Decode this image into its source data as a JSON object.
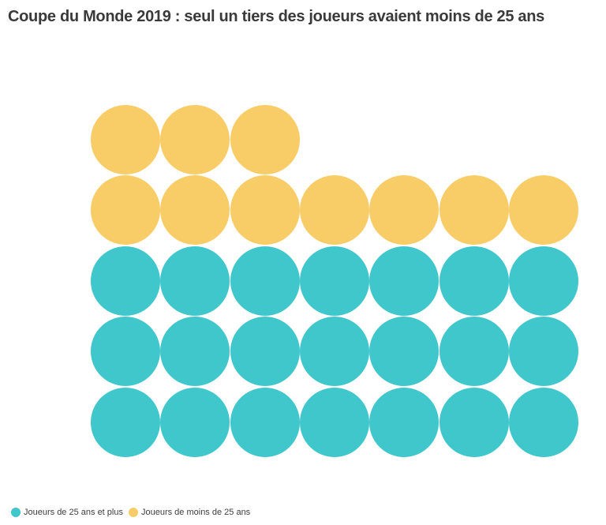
{
  "chart": {
    "title": "Coupe du Monde 2019 : seul un tiers des joueurs avaient moins de 25 ans",
    "legend": [
      {
        "key": "over25",
        "label": "Joueurs de 25 ans et plus",
        "color": "#3FC7CB"
      },
      {
        "key": "under25",
        "label": "Joueurs de moins de 25 ans",
        "color": "#F8CD67"
      }
    ]
  },
  "chart_data": {
    "type": "waffle",
    "title": "Coupe du Monde 2019 : seul un tiers des joueurs avaient moins de 25 ans",
    "unit": "joueurs",
    "total": 31,
    "series": [
      {
        "key": "under25",
        "name": "Joueurs de moins de 25 ans",
        "value": 10,
        "color": "#F8CD67"
      },
      {
        "key": "over25",
        "name": "Joueurs de 25 ans et plus",
        "value": 21,
        "color": "#3FC7CB"
      }
    ],
    "grid": {
      "columns": 7,
      "rows": [
        [
          "under25",
          "under25",
          "under25",
          null,
          null,
          null,
          null
        ],
        [
          "under25",
          "under25",
          "under25",
          "under25",
          "under25",
          "under25",
          "under25"
        ],
        [
          "over25",
          "over25",
          "over25",
          "over25",
          "over25",
          "over25",
          "over25"
        ],
        [
          "over25",
          "over25",
          "over25",
          "over25",
          "over25",
          "over25",
          "over25"
        ],
        [
          "over25",
          "over25",
          "over25",
          "over25",
          "over25",
          "over25",
          "over25"
        ]
      ]
    },
    "legend_position": "bottom-left",
    "grid_lines": false
  }
}
